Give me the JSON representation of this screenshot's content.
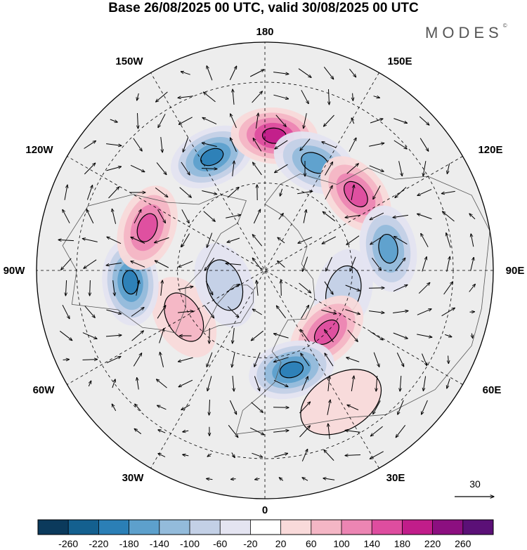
{
  "chart_data": {
    "type": "polar-stereographic-contour-map",
    "title": "Base 26/08/2025 00 UTC, valid 30/08/2025 00 UTC",
    "projection": "north-polar-stereographic",
    "longitude_labels": [
      "180",
      "150E",
      "120E",
      "90E",
      "60E",
      "30E",
      "0",
      "30W",
      "60W",
      "90W",
      "120W",
      "150W"
    ],
    "wind_reference_vector": "30",
    "colorbar": {
      "ticks": [
        -260,
        -220,
        -180,
        -140,
        -100,
        -60,
        -20,
        20,
        60,
        100,
        140,
        180,
        220,
        260
      ],
      "colors": [
        "#0b3a5c",
        "#14608f",
        "#2b7fb6",
        "#5da0cc",
        "#93bbdb",
        "#c3d0e6",
        "#e4e4f1",
        "#ffffff",
        "#f9dada",
        "#f4b6c5",
        "#ec85b3",
        "#de4d9f",
        "#c11d8a",
        "#8c0f80",
        "#5b1077"
      ]
    },
    "anomaly_centers": [
      {
        "lon": -155,
        "lat": 48,
        "value": -200,
        "sign": "negative"
      },
      {
        "lon": 176,
        "lat": 45,
        "value": 200,
        "sign": "positive"
      },
      {
        "lon": 155,
        "lat": 50,
        "value": -180,
        "sign": "negative"
      },
      {
        "lon": 130,
        "lat": 50,
        "value": 160,
        "sign": "positive"
      },
      {
        "lon": 100,
        "lat": 48,
        "value": -170,
        "sign": "negative"
      },
      {
        "lon": 75,
        "lat": 62,
        "value": -110,
        "sign": "negative"
      },
      {
        "lon": 45,
        "lat": 60,
        "value": 160,
        "sign": "positive"
      },
      {
        "lon": 15,
        "lat": 55,
        "value": -230,
        "sign": "negative"
      },
      {
        "lon": -60,
        "lat": 58,
        "value": 90,
        "sign": "positive"
      },
      {
        "lon": -85,
        "lat": 45,
        "value": -200,
        "sign": "negative"
      },
      {
        "lon": -110,
        "lat": 48,
        "value": 160,
        "sign": "positive"
      },
      {
        "lon": -70,
        "lat": 75,
        "value": -90,
        "sign": "negative"
      },
      {
        "lon": 30,
        "lat": 40,
        "value": 60,
        "sign": "positive"
      }
    ]
  },
  "header": {
    "title": "Base 26/08/2025 00 UTC, valid 30/08/2025 00 UTC",
    "brand": "MODES",
    "brand_mark": "©"
  }
}
